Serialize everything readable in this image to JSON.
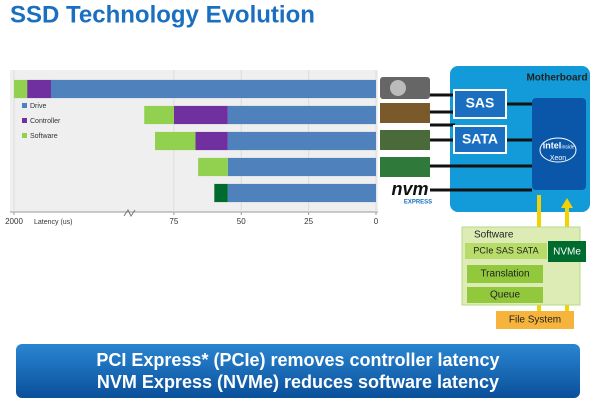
{
  "title": "SSD Technology Evolution",
  "chart_data": {
    "type": "bar",
    "orientation": "horizontal",
    "stacked": true,
    "categories": [
      null,
      null,
      null,
      null,
      null
    ],
    "series": [
      {
        "name": "Drive",
        "color": "#4f81bd",
        "values": [
          1969,
          55,
          55,
          55,
          55
        ]
      },
      {
        "name": "Controller",
        "color": "#7030a0",
        "values": [
          20,
          20,
          12,
          0,
          0
        ]
      },
      {
        "name": "Software",
        "color": "#92d050",
        "colors": [
          "#92d050",
          "#92d050",
          "#92d050",
          "#92d050",
          "#006b2e"
        ],
        "values": [
          11,
          11,
          15,
          11,
          5
        ]
      }
    ],
    "xlabel": "Latency (us)",
    "xlim": [
      2000,
      0
    ],
    "x_break": [
      90,
      1900
    ],
    "xticks": [
      2000,
      75,
      50,
      25,
      0
    ],
    "grid": true,
    "legend": "upper left"
  },
  "diagram": {
    "motherboard": "Motherboard",
    "sas": "SAS",
    "sata": "SATA",
    "intel": "intel",
    "inside": "inside",
    "xeon": "Xeon",
    "nvm_logo": "nvm",
    "nvm_express": "EXPRESS",
    "software_stack": {
      "title": "Software",
      "protocols": "PCIe SAS SATA",
      "nvme": "NVMe",
      "translation": "Translation",
      "queue": "Queue",
      "file_system": "File System"
    }
  },
  "banner": [
    "PCI Express* (PCIe) removes controller latency",
    "NVM Express (NVMe) reduces software latency"
  ]
}
